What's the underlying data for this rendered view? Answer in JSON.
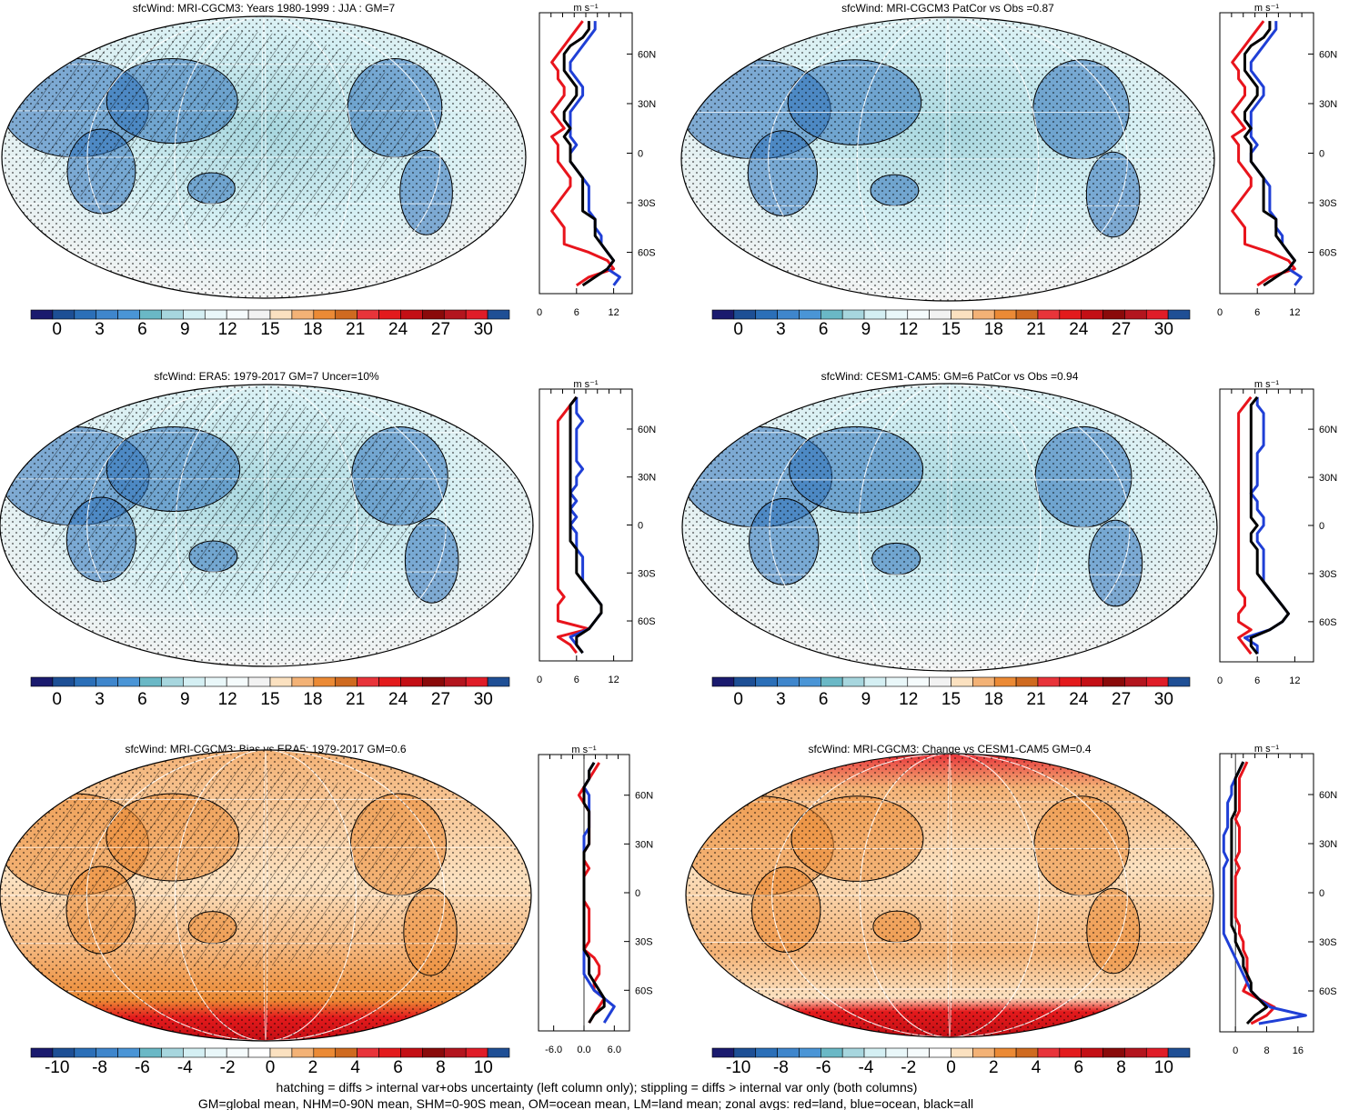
{
  "figure": {
    "caption_lines": [
      "hatching = diffs > internal var+obs uncertainty (left column only); stippling = diffs > internal var only (both columns)",
      "GM=global mean, NHM=0-90N mean, SHM=0-90S mean, OM=ocean mean, LM=land mean; zonal avgs: red=land, blue=ocean, black=all"
    ]
  },
  "colors": {
    "land": "#e8141c",
    "ocean": "#1f3fd6",
    "all": "#000000",
    "full_scale": [
      "#1a1a6e",
      "#1d4f95",
      "#2b6fb8",
      "#4a95d6",
      "#6ab8c6",
      "#a7d6de",
      "#d4eff3",
      "#f5fbfc",
      "#f2f2f2",
      "#fbe1c0",
      "#f3b276",
      "#eb8a35",
      "#cf6a20",
      "#e8343a",
      "#e31a1c",
      "#c40f15",
      "#8a0a0a",
      "#b3151e",
      "#e01d28",
      "#1f4f95"
    ]
  },
  "chart_data": [
    {
      "type": "heatmap",
      "title": "sfcWind: MRI-CGCM3: Years 1980-1999 : JJA : GM=7",
      "colorbar_ticks": [
        "0",
        "3",
        "6",
        "9",
        "12",
        "15",
        "18",
        "21",
        "24",
        "27",
        "30"
      ],
      "map_style": "abs",
      "hatch": true,
      "stipple": true,
      "zonal": {
        "unit": "m s⁻¹",
        "x_ticks": [
          "0",
          "6",
          "12"
        ],
        "xlim": [
          0,
          15
        ],
        "lat_ticks": [
          "60N",
          "30N",
          "0",
          "30S",
          "60S"
        ],
        "lat_values": [
          60,
          30,
          0,
          -30,
          -60
        ],
        "ylim": [
          -85,
          85
        ],
        "lat": [
          80,
          75,
          70,
          65,
          60,
          55,
          50,
          45,
          40,
          35,
          30,
          25,
          20,
          15,
          10,
          5,
          0,
          -5,
          -10,
          -15,
          -20,
          -25,
          -30,
          -35,
          -40,
          -45,
          -50,
          -55,
          -60,
          -65,
          -70,
          -75,
          -80
        ],
        "land": [
          7,
          6,
          5,
          4,
          3,
          2,
          3,
          3,
          4,
          4,
          3,
          2,
          3,
          4,
          2,
          3,
          3,
          3,
          4,
          5,
          5,
          4,
          3,
          2,
          3,
          4,
          4,
          4,
          8,
          11,
          12,
          8,
          6
        ],
        "ocean": [
          9,
          9,
          8,
          7,
          6,
          5,
          5,
          6,
          7,
          7,
          6,
          5,
          5,
          5,
          5,
          6,
          5,
          5,
          6,
          7,
          8,
          8,
          8,
          8,
          9,
          9,
          10,
          10,
          11,
          12,
          11,
          13,
          12
        ],
        "all": [
          8,
          8,
          7,
          5,
          4,
          4,
          4,
          5,
          6,
          6,
          5,
          4,
          4,
          5,
          4,
          5,
          5,
          5,
          6,
          7,
          7,
          7,
          7,
          7,
          9,
          9,
          9,
          10,
          11,
          12,
          11,
          9,
          7
        ]
      }
    },
    {
      "type": "heatmap",
      "title": "sfcWind: MRI-CGCM3 PatCor vs Obs =0.87",
      "colorbar_ticks": [
        "0",
        "3",
        "6",
        "9",
        "12",
        "15",
        "18",
        "21",
        "24",
        "27",
        "30"
      ],
      "map_style": "abs",
      "hatch": false,
      "stipple": true,
      "zonal": {
        "unit": "m s⁻¹",
        "x_ticks": [
          "0",
          "6",
          "12"
        ],
        "xlim": [
          0,
          15
        ],
        "lat_ticks": [
          "60N",
          "30N",
          "0",
          "30S",
          "60S"
        ],
        "lat_values": [
          60,
          30,
          0,
          -30,
          -60
        ],
        "ylim": [
          -85,
          85
        ],
        "lat": [
          80,
          75,
          70,
          65,
          60,
          55,
          50,
          45,
          40,
          35,
          30,
          25,
          20,
          15,
          10,
          5,
          0,
          -5,
          -10,
          -15,
          -20,
          -25,
          -30,
          -35,
          -40,
          -45,
          -50,
          -55,
          -60,
          -65,
          -70,
          -75,
          -80
        ],
        "land": [
          7,
          6,
          5,
          4,
          3,
          2,
          3,
          3,
          4,
          4,
          3,
          2,
          3,
          4,
          2,
          3,
          3,
          3,
          4,
          5,
          5,
          4,
          3,
          2,
          3,
          4,
          4,
          4,
          8,
          11,
          12,
          8,
          6
        ],
        "ocean": [
          9,
          9,
          8,
          7,
          6,
          5,
          5,
          6,
          7,
          7,
          6,
          5,
          5,
          5,
          5,
          6,
          5,
          5,
          6,
          7,
          8,
          8,
          8,
          8,
          9,
          9,
          10,
          10,
          11,
          12,
          11,
          13,
          12
        ],
        "all": [
          8,
          8,
          7,
          5,
          4,
          4,
          4,
          5,
          6,
          6,
          5,
          4,
          4,
          5,
          4,
          5,
          5,
          5,
          6,
          7,
          7,
          7,
          7,
          7,
          9,
          9,
          9,
          10,
          11,
          12,
          11,
          9,
          7
        ]
      }
    },
    {
      "type": "heatmap",
      "title": "sfcWind: ERA5: 1979-2017 GM=7 Uncer=10%",
      "colorbar_ticks": [
        "0",
        "3",
        "6",
        "9",
        "12",
        "15",
        "18",
        "21",
        "24",
        "27",
        "30"
      ],
      "map_style": "abs",
      "hatch": true,
      "stipple": true,
      "zonal": {
        "unit": "m s⁻¹",
        "x_ticks": [
          "0",
          "6",
          "12"
        ],
        "xlim": [
          0,
          15
        ],
        "lat_ticks": [
          "60N",
          "30N",
          "0",
          "30S",
          "60S"
        ],
        "lat_values": [
          60,
          30,
          0,
          -30,
          -60
        ],
        "ylim": [
          -85,
          85
        ],
        "lat": [
          80,
          75,
          70,
          65,
          60,
          55,
          50,
          45,
          40,
          35,
          30,
          25,
          20,
          15,
          10,
          5,
          0,
          -5,
          -10,
          -15,
          -20,
          -25,
          -30,
          -35,
          -40,
          -45,
          -50,
          -55,
          -60,
          -65,
          -70,
          -75,
          -80
        ],
        "land": [
          6,
          5,
          4,
          3,
          3,
          3,
          3,
          3,
          3,
          3,
          3,
          3,
          3,
          3,
          3,
          3,
          3,
          3,
          3,
          3,
          3,
          3,
          3,
          3,
          3,
          4,
          3,
          3,
          3,
          8,
          3,
          5,
          6
        ],
        "ocean": [
          6,
          6,
          6,
          7,
          6,
          6,
          6,
          6,
          6,
          7,
          6,
          6,
          5,
          6,
          5,
          6,
          5,
          6,
          6,
          6,
          7,
          7,
          7,
          7,
          8,
          9,
          10,
          10,
          9,
          8,
          5,
          6,
          7
        ],
        "all": [
          6,
          5,
          5,
          5,
          5,
          5,
          5,
          5,
          5,
          5,
          5,
          5,
          5,
          5,
          5,
          5,
          5,
          5,
          5,
          6,
          6,
          6,
          6,
          7,
          8,
          9,
          10,
          10,
          9,
          8,
          6,
          6,
          7
        ]
      }
    },
    {
      "type": "heatmap",
      "title": "sfcWind: CESM1-CAM5: GM=6 PatCor vs Obs =0.94",
      "colorbar_ticks": [
        "0",
        "3",
        "6",
        "9",
        "12",
        "15",
        "18",
        "21",
        "24",
        "27",
        "30"
      ],
      "map_style": "abs",
      "hatch": false,
      "stipple": true,
      "zonal": {
        "unit": "m s⁻¹",
        "x_ticks": [
          "0",
          "6",
          "12"
        ],
        "xlim": [
          0,
          15
        ],
        "lat_ticks": [
          "60N",
          "30N",
          "0",
          "30S",
          "60S"
        ],
        "lat_values": [
          60,
          30,
          0,
          -30,
          -60
        ],
        "ylim": [
          -85,
          85
        ],
        "lat": [
          80,
          75,
          70,
          65,
          60,
          55,
          50,
          45,
          40,
          35,
          30,
          25,
          20,
          15,
          10,
          5,
          0,
          -5,
          -10,
          -15,
          -20,
          -25,
          -30,
          -35,
          -40,
          -45,
          -50,
          -55,
          -60,
          -65,
          -70,
          -75,
          -80
        ],
        "land": [
          5,
          4,
          3,
          3,
          3,
          3,
          3,
          3,
          3,
          3,
          3,
          3,
          3,
          3,
          3,
          3,
          3,
          3,
          3,
          3,
          3,
          3,
          3,
          3,
          3,
          4,
          4,
          3,
          3,
          5,
          3,
          4,
          5
        ],
        "ocean": [
          6,
          6,
          7,
          7,
          7,
          7,
          7,
          6,
          6,
          6,
          6,
          6,
          5,
          6,
          6,
          7,
          7,
          6,
          6,
          7,
          7,
          7,
          7,
          7,
          8,
          9,
          10,
          11,
          10,
          8,
          4,
          6,
          6
        ],
        "all": [
          6,
          5,
          5,
          5,
          5,
          5,
          5,
          5,
          5,
          5,
          5,
          5,
          5,
          5,
          5,
          5,
          6,
          5,
          5,
          6,
          6,
          6,
          6,
          7,
          8,
          9,
          10,
          11,
          10,
          8,
          5,
          5,
          6
        ]
      }
    },
    {
      "type": "heatmap",
      "title": "sfcWind: MRI-CGCM3: Bias vs ERA5: 1979-2017 GM=0.6",
      "colorbar_ticks": [
        "-10",
        "-8",
        "-6",
        "-4",
        "-2",
        "0",
        "2",
        "4",
        "6",
        "8",
        "10"
      ],
      "map_style": "bias",
      "hatch": true,
      "stipple": true,
      "zonal": {
        "unit": "m s⁻¹",
        "x_ticks": [
          "-6.0",
          "0.0",
          "6.0"
        ],
        "xlim": [
          -9,
          9
        ],
        "lat_ticks": [
          "60N",
          "30N",
          "0",
          "30S",
          "60S"
        ],
        "lat_values": [
          60,
          30,
          0,
          -30,
          -60
        ],
        "ylim": [
          -85,
          85
        ],
        "lat": [
          80,
          75,
          70,
          65,
          60,
          55,
          50,
          45,
          40,
          35,
          30,
          25,
          20,
          15,
          10,
          5,
          0,
          -5,
          -10,
          -15,
          -20,
          -25,
          -30,
          -35,
          -40,
          -45,
          -50,
          -55,
          -60,
          -65,
          -70,
          -75,
          -80
        ],
        "land": [
          3,
          2,
          1,
          0,
          -1,
          0,
          1,
          1,
          1,
          1,
          1,
          0,
          0,
          1,
          0,
          0,
          0,
          0,
          1,
          1,
          1,
          1,
          1,
          0,
          2,
          3,
          3,
          2,
          2,
          4,
          3,
          2,
          1
        ],
        "ocean": [
          2,
          1,
          1,
          0,
          1,
          1,
          1,
          1,
          1,
          0,
          0,
          0,
          0,
          0,
          0,
          0,
          0,
          0,
          0,
          0,
          0,
          0,
          0,
          0,
          0,
          0,
          0,
          1,
          2,
          4,
          6,
          5,
          4
        ],
        "all": [
          2,
          1,
          1,
          0,
          0,
          0,
          1,
          1,
          1,
          1,
          1,
          0,
          0,
          0,
          0,
          0,
          0,
          0,
          0,
          0,
          0,
          0,
          0,
          0,
          1,
          1,
          1,
          2,
          3,
          4,
          4,
          2,
          1
        ]
      }
    },
    {
      "type": "heatmap",
      "title": "sfcWind: MRI-CGCM3: Change vs CESM1-CAM5 GM=0.4",
      "colorbar_ticks": [
        "-10",
        "-8",
        "-6",
        "-4",
        "-2",
        "0",
        "2",
        "4",
        "6",
        "8",
        "10"
      ],
      "map_style": "change",
      "hatch": false,
      "stipple": true,
      "zonal": {
        "unit": "m s⁻¹",
        "x_ticks": [
          "0",
          "8",
          "16"
        ],
        "xlim": [
          -4,
          20
        ],
        "lat_ticks": [
          "60N",
          "30N",
          "0",
          "30S",
          "60S"
        ],
        "lat_values": [
          60,
          30,
          0,
          -30,
          -60
        ],
        "ylim": [
          -85,
          85
        ],
        "lat": [
          80,
          75,
          70,
          65,
          60,
          55,
          50,
          45,
          40,
          35,
          30,
          25,
          20,
          15,
          10,
          5,
          0,
          -5,
          -10,
          -15,
          -20,
          -25,
          -30,
          -35,
          -40,
          -45,
          -50,
          -55,
          -60,
          -65,
          -70,
          -75,
          -80
        ],
        "land": [
          3,
          2,
          1,
          1,
          1,
          1,
          1,
          0,
          1,
          1,
          1,
          1,
          0,
          1,
          0,
          0,
          0,
          0,
          0,
          0,
          1,
          1,
          2,
          2,
          3,
          3,
          3,
          3,
          2,
          6,
          10,
          8,
          4
        ],
        "ocean": [
          2,
          1,
          0,
          -1,
          -1,
          -2,
          -2,
          -2,
          -2,
          -3,
          -3,
          -3,
          -2,
          -3,
          -3,
          -3,
          -3,
          -3,
          -3,
          -3,
          -3,
          -3,
          -2,
          -1,
          0,
          1,
          2,
          3,
          4,
          6,
          9,
          18,
          6
        ],
        "all": [
          2,
          1,
          0,
          0,
          0,
          0,
          0,
          -1,
          -1,
          -1,
          -1,
          -1,
          -1,
          -1,
          -1,
          -1,
          -1,
          -1,
          -1,
          -1,
          -1,
          0,
          0,
          1,
          2,
          2,
          3,
          4,
          4,
          6,
          8,
          5,
          3
        ]
      }
    }
  ]
}
